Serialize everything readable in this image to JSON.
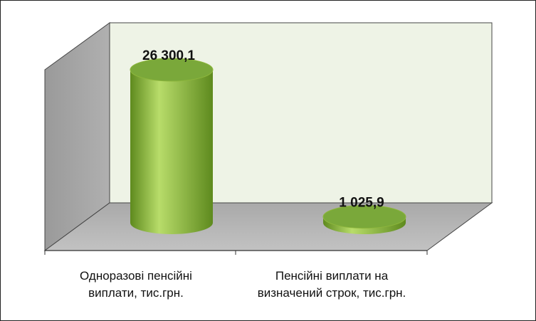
{
  "chart_data": {
    "type": "bar",
    "style": "3d-cylinder",
    "categories": [
      "Одноразові пенсійні\nвиплати, тис.грн.",
      "Пенсійні виплати на\nвизначений строк, тис.грн."
    ],
    "values": [
      26300.1,
      1025.9
    ],
    "data_labels": [
      "26 300,1",
      "1 025,9"
    ],
    "title": "",
    "xlabel": "",
    "ylabel": "",
    "ylim": [
      0,
      30000
    ],
    "grid": false,
    "legend": "none",
    "colors": {
      "bar_light": "#b8dc6a",
      "bar_mid": "#8db63c",
      "bar_dark": "#5e8a1e",
      "bar_top": "#7aa83a",
      "back_wall": "#eef3e6",
      "side_wall": "#a8a8a8",
      "floor": "#b4b4b4"
    }
  }
}
